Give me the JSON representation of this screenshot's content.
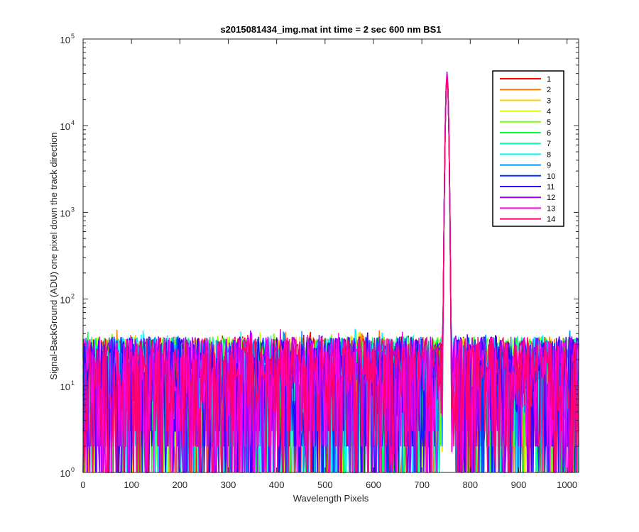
{
  "chart_data": {
    "type": "line",
    "title": "s2015081434_img.mat int time = 2 sec  600 nm BS1",
    "xlabel": "Wavelength Pixels",
    "ylabel": "Signal-BackGround (ADU) one pixel down the track direction",
    "xlim": [
      0,
      1024
    ],
    "ylim": [
      1,
      100000
    ],
    "yscale": "log",
    "x_ticks": [
      0,
      100,
      200,
      300,
      400,
      500,
      600,
      700,
      800,
      900,
      1000
    ],
    "y_ticks": [
      {
        "base": "10",
        "exp": "0",
        "value": 1
      },
      {
        "base": "10",
        "exp": "1",
        "value": 10
      },
      {
        "base": "10",
        "exp": "2",
        "value": 100
      },
      {
        "base": "10",
        "exp": "3",
        "value": 1000
      },
      {
        "base": "10",
        "exp": "4",
        "value": 10000
      },
      {
        "base": "10",
        "exp": "5",
        "value": 100000
      }
    ],
    "grid": false,
    "legend_position": "top-right",
    "noise_floor_range": [
      1,
      45
    ],
    "peak": {
      "x": 752,
      "y": 42000,
      "series": "12"
    },
    "series": [
      {
        "name": "1",
        "color": "#ff0000"
      },
      {
        "name": "2",
        "color": "#ff7b00"
      },
      {
        "name": "3",
        "color": "#ffd200"
      },
      {
        "name": "4",
        "color": "#d2ff00"
      },
      {
        "name": "5",
        "color": "#7bff00"
      },
      {
        "name": "6",
        "color": "#00ff3d"
      },
      {
        "name": "7",
        "color": "#00ff9e"
      },
      {
        "name": "8",
        "color": "#00f6ff"
      },
      {
        "name": "9",
        "color": "#0094ff"
      },
      {
        "name": "10",
        "color": "#0031ff"
      },
      {
        "name": "11",
        "color": "#3a00ff"
      },
      {
        "name": "12",
        "color": "#a300ff"
      },
      {
        "name": "13",
        "color": "#ff00e0"
      },
      {
        "name": "14",
        "color": "#ff0073"
      }
    ]
  }
}
